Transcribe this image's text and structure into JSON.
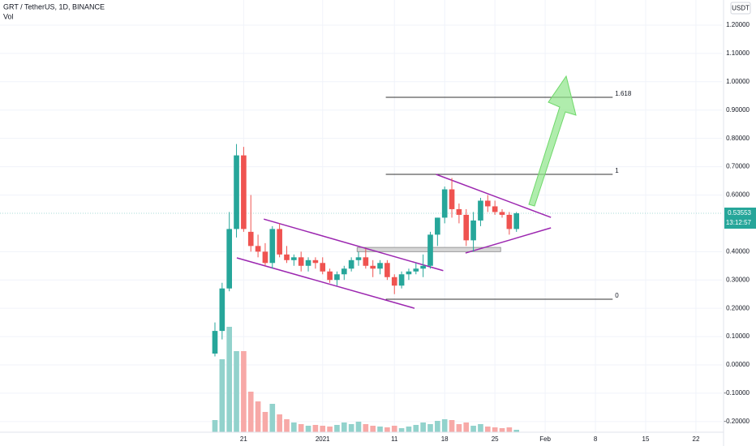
{
  "chart_data": {
    "type": "candlestick",
    "title": "GRT / TetherUS, 1D, BINANCE",
    "volume_label": "Vol",
    "currency": "USDT",
    "categories": [
      null,
      null,
      null,
      null,
      null,
      null,
      null,
      null,
      null,
      null,
      null,
      null,
      null,
      null,
      null,
      null,
      null,
      null,
      null,
      null,
      null,
      null,
      null,
      null,
      null,
      null,
      null,
      null,
      null,
      null,
      null,
      null,
      null,
      null,
      null,
      null,
      null,
      null,
      null,
      null,
      null,
      null,
      null
    ],
    "open": [
      0.04,
      0.12,
      0.27,
      0.48,
      0.74,
      0.47,
      0.42,
      0.4,
      0.36,
      0.48,
      0.39,
      0.37,
      0.38,
      0.35,
      0.37,
      0.36,
      0.33,
      0.3,
      0.32,
      0.34,
      0.37,
      0.38,
      0.35,
      0.34,
      0.36,
      0.31,
      0.28,
      0.32,
      0.33,
      0.34,
      0.35,
      0.46,
      0.52,
      0.62,
      0.55,
      0.53,
      0.44,
      0.51,
      0.58,
      0.56,
      0.54,
      0.53,
      0.48
    ],
    "high": [
      0.15,
      0.29,
      0.54,
      0.78,
      0.77,
      0.6,
      0.46,
      0.43,
      0.49,
      0.5,
      0.42,
      0.39,
      0.4,
      0.38,
      0.38,
      0.38,
      0.34,
      0.33,
      0.35,
      0.38,
      0.4,
      0.41,
      0.37,
      0.37,
      0.37,
      0.32,
      0.33,
      0.34,
      0.36,
      0.39,
      0.47,
      0.52,
      0.63,
      0.66,
      0.57,
      0.55,
      0.54,
      0.59,
      0.6,
      0.58,
      0.55,
      0.54,
      0.54
    ],
    "low": [
      0.03,
      0.09,
      0.26,
      0.45,
      0.47,
      0.4,
      0.38,
      0.35,
      0.34,
      0.38,
      0.36,
      0.35,
      0.33,
      0.33,
      0.34,
      0.32,
      0.29,
      0.28,
      0.3,
      0.33,
      0.35,
      0.34,
      0.31,
      0.32,
      0.3,
      0.25,
      0.27,
      0.3,
      0.32,
      0.31,
      0.34,
      0.42,
      0.5,
      0.52,
      0.5,
      0.42,
      0.4,
      0.49,
      0.54,
      0.53,
      0.52,
      0.46,
      0.47
    ],
    "close": [
      0.12,
      0.27,
      0.48,
      0.74,
      0.48,
      0.42,
      0.4,
      0.36,
      0.48,
      0.39,
      0.37,
      0.38,
      0.35,
      0.37,
      0.36,
      0.33,
      0.3,
      0.32,
      0.34,
      0.37,
      0.38,
      0.35,
      0.34,
      0.36,
      0.31,
      0.28,
      0.32,
      0.33,
      0.34,
      0.35,
      0.46,
      0.52,
      0.62,
      0.55,
      0.53,
      0.44,
      0.51,
      0.58,
      0.56,
      0.54,
      0.53,
      0.48,
      0.53553
    ],
    "volume": [
      15,
      90,
      130,
      100,
      100,
      50,
      38,
      25,
      35,
      22,
      16,
      12,
      10,
      8,
      9,
      8,
      7,
      9,
      12,
      10,
      13,
      10,
      8,
      7,
      6,
      8,
      5,
      7,
      9,
      12,
      10,
      14,
      16,
      15,
      10,
      12,
      8,
      10,
      7,
      6,
      5,
      6,
      3
    ],
    "vlim": [
      0,
      160
    ],
    "up_color": "#26a69a",
    "down_color": "#ef5350",
    "up_volume_color": "#92d2cc",
    "down_volume_color": "#f7a9a7",
    "ylim": [
      -0.2377,
      1.2887
    ],
    "yticks": [
      {
        "value": 1.2,
        "label": "1.20000"
      },
      {
        "value": 1.1,
        "label": "1.10000"
      },
      {
        "value": 1.0,
        "label": "1.00000"
      },
      {
        "value": 0.9,
        "label": "0.90000"
      },
      {
        "value": 0.8,
        "label": "0.80000"
      },
      {
        "value": 0.7,
        "label": "0.70000"
      },
      {
        "value": 0.6,
        "label": "0.60000"
      },
      {
        "value": 0.4,
        "label": "0.40000"
      },
      {
        "value": 0.3,
        "label": "0.30000"
      },
      {
        "value": 0.2,
        "label": "0.20000"
      },
      {
        "value": 0.1,
        "label": "0.10000"
      },
      {
        "value": 0,
        "label": "0.00000"
      },
      {
        "value": -0.1,
        "label": "-0.10000"
      },
      {
        "value": -0.2,
        "label": "-0.20000"
      }
    ],
    "xlim": [
      -29.94,
      70.62
    ],
    "xticks": [
      {
        "value": 4,
        "label": "21"
      },
      {
        "value": 15,
        "label": "2021"
      },
      {
        "value": 25,
        "label": "11"
      },
      {
        "value": 32,
        "label": "18"
      },
      {
        "value": 39,
        "label": "25"
      },
      {
        "value": 46,
        "label": "Feb"
      },
      {
        "value": 53,
        "label": "8"
      },
      {
        "value": 60,
        "label": "15"
      },
      {
        "value": 67,
        "label": "22"
      }
    ],
    "grid": true,
    "last_price": 0.53553,
    "countdown": "13:12:57",
    "fib_levels": [
      {
        "label": "1.618",
        "price": 0.945,
        "x": [
          23.8,
          55.4
        ]
      },
      {
        "label": "1",
        "price": 0.673,
        "x": [
          23.8,
          55.4
        ]
      },
      {
        "label": "0",
        "price": 0.232,
        "x": [
          23.8,
          55.4
        ]
      }
    ],
    "trendlines": [
      {
        "x": [
          6.8,
          31.8
        ],
        "y": [
          0.515,
          0.333
        ]
      },
      {
        "x": [
          3.05,
          27.8
        ],
        "y": [
          0.378,
          0.2
        ]
      },
      {
        "x": [
          30.8,
          46.8
        ],
        "y": [
          0.673,
          0.521
        ]
      },
      {
        "x": [
          34.9,
          46.8
        ],
        "y": [
          0.395,
          0.484
        ]
      }
    ],
    "trendline_color": "#9c27b0",
    "zones": [
      {
        "x": [
          19.8,
          39.8
        ],
        "y": [
          0.415,
          0.4
        ]
      }
    ]
  }
}
